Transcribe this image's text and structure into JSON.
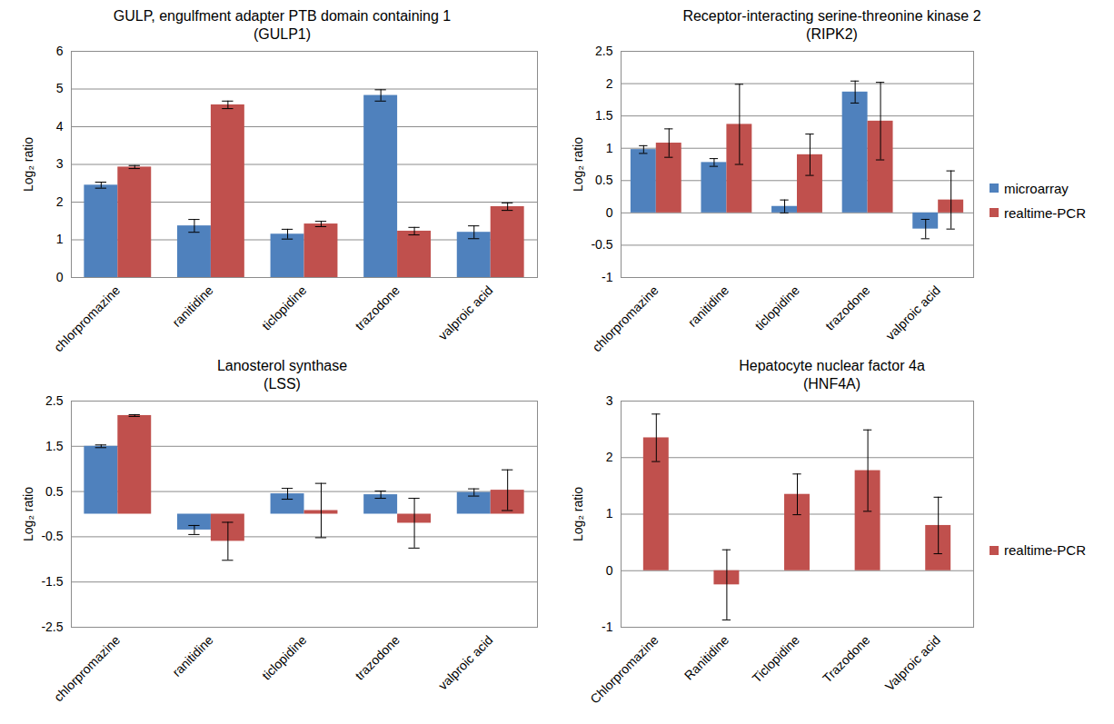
{
  "chart_data": [
    {
      "type": "bar",
      "title": "GULP, engulfment adapter PTB domain containing 1\n(GULP1)",
      "ylabel": "Log₂ ratio",
      "categories": [
        "chlorpromazine",
        "ranitidine",
        "ticlopidine",
        "trazodone",
        "valproic acid"
      ],
      "ylim": [
        0,
        6
      ],
      "yticks": [
        0,
        1,
        2,
        3,
        4,
        5,
        6
      ],
      "grid": true,
      "series": [
        {
          "name": "microarray",
          "color": "#4f81bd",
          "values": [
            2.45,
            1.37,
            1.15,
            4.83,
            1.2
          ],
          "errors": [
            0.08,
            0.17,
            0.13,
            0.15,
            0.17
          ]
        },
        {
          "name": "realtime-PCR",
          "color": "#c0504d",
          "values": [
            2.93,
            4.58,
            1.42,
            1.23,
            1.88
          ],
          "errors": [
            0.04,
            0.1,
            0.07,
            0.1,
            0.1
          ]
        }
      ]
    },
    {
      "type": "bar",
      "title": "Receptor-interacting serine-threonine kinase 2\n(RIPK2)",
      "ylabel": "Log₂ ratio",
      "categories": [
        "chlorpromazine",
        "ranitidine",
        "ticlopidine",
        "trazodone",
        "valproic acid"
      ],
      "ylim": [
        -1,
        2.5
      ],
      "yticks": [
        -1,
        -0.5,
        0,
        0.5,
        1,
        1.5,
        2,
        2.5
      ],
      "grid": true,
      "legend": "right",
      "series": [
        {
          "name": "microarray",
          "color": "#4f81bd",
          "values": [
            0.98,
            0.78,
            0.1,
            1.87,
            -0.25
          ],
          "errors": [
            0.06,
            0.06,
            0.1,
            0.17,
            0.15
          ]
        },
        {
          "name": "realtime-PCR",
          "color": "#c0504d",
          "values": [
            1.08,
            1.37,
            0.9,
            1.42,
            0.2
          ],
          "errors": [
            0.22,
            0.62,
            0.32,
            0.6,
            0.45
          ]
        }
      ]
    },
    {
      "type": "bar",
      "title": "Lanosterol synthase\n(LSS)",
      "ylabel": "Log₂ ratio",
      "categories": [
        "chlorpromazine",
        "ranitidine",
        "ticlopidine",
        "trazodone",
        "valproic acid"
      ],
      "ylim": [
        -2.5,
        2.5
      ],
      "yticks": [
        -2.5,
        -1.5,
        -0.5,
        0.5,
        1.5,
        2.5
      ],
      "grid": true,
      "series": [
        {
          "name": "microarray",
          "color": "#4f81bd",
          "values": [
            1.5,
            -0.35,
            0.45,
            0.43,
            0.48
          ],
          "errors": [
            0.03,
            0.1,
            0.12,
            0.08,
            0.08
          ]
        },
        {
          "name": "realtime-PCR",
          "color": "#c0504d",
          "values": [
            2.18,
            -0.6,
            0.08,
            -0.2,
            0.53
          ],
          "errors": [
            0.02,
            0.42,
            0.6,
            0.55,
            0.45
          ]
        }
      ]
    },
    {
      "type": "bar",
      "title": "Hepatocyte nuclear factor 4a\n(HNF4A)",
      "ylabel": "Log₂ ratio",
      "categories": [
        "Chlorpromazine",
        "Ranitidine",
        "Ticlopidine",
        "Trazodone",
        "Valproic acid"
      ],
      "ylim": [
        -1,
        3
      ],
      "yticks": [
        -1,
        0,
        1,
        2,
        3
      ],
      "grid": true,
      "legend": "right",
      "series": [
        {
          "name": "realtime-PCR",
          "color": "#c0504d",
          "values": [
            2.35,
            -0.25,
            1.35,
            1.77,
            0.8
          ],
          "errors": [
            0.42,
            0.62,
            0.36,
            0.72,
            0.5
          ]
        }
      ]
    }
  ]
}
